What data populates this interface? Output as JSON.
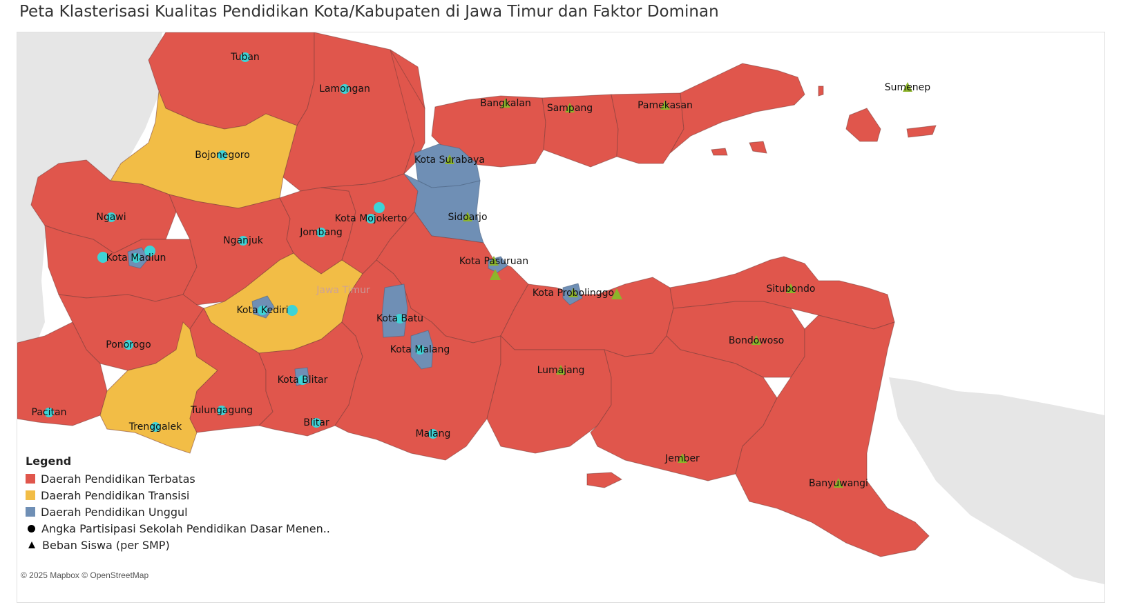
{
  "title": "Peta Klasterisasi Kualitas Pendidikan Kota/Kabupaten di Jawa Timur dan Faktor Dominan",
  "province_label": "Jawa Timur",
  "attribution": "© 2025 Mapbox © OpenStreetMap",
  "colors": {
    "terbatas": "#e0564c",
    "transisi": "#f2bd46",
    "unggul": "#6f8fb5",
    "marker_circle": "#3ed3d6",
    "marker_triangle": "#8db52a"
  },
  "legend": {
    "title": "Legend",
    "items": [
      {
        "label": "Daerah Pendidikan Terbatas",
        "kind": "swatch",
        "color": "#e0564c"
      },
      {
        "label": "Daerah Pendidikan Transisi",
        "kind": "swatch",
        "color": "#f2bd46"
      },
      {
        "label": "Daerah Pendidikan Unggul",
        "kind": "swatch",
        "color": "#6f8fb5"
      },
      {
        "label": "Angka Partisipasi Sekolah Pendidikan Dasar Menen..",
        "kind": "circle",
        "color": "#000000"
      },
      {
        "label": "Beban Siswa (per SMP)",
        "kind": "triangle",
        "color": "#000000"
      }
    ]
  },
  "cities": [
    {
      "name": "Tuban",
      "cluster": "terbatas",
      "factor": "circle"
    },
    {
      "name": "Lamongan",
      "cluster": "terbatas",
      "factor": "circle"
    },
    {
      "name": "Bojonegoro",
      "cluster": "transisi",
      "factor": "circle"
    },
    {
      "name": "Ngawi",
      "cluster": "terbatas",
      "factor": "circle"
    },
    {
      "name": "Kota Madiun",
      "cluster": "unggul",
      "factor": "circle"
    },
    {
      "name": "Nganjuk",
      "cluster": "terbatas",
      "factor": "circle"
    },
    {
      "name": "Jombang",
      "cluster": "terbatas",
      "factor": "circle"
    },
    {
      "name": "Kota Mojokerto",
      "cluster": "terbatas",
      "factor": "circle"
    },
    {
      "name": "Kota Surabaya",
      "cluster": "unggul",
      "factor": "triangle"
    },
    {
      "name": "Sidoarjo",
      "cluster": "unggul",
      "factor": "triangle"
    },
    {
      "name": "Kota Pasuruan",
      "cluster": "unggul",
      "factor": "triangle"
    },
    {
      "name": "Kota Probolinggo",
      "cluster": "unggul",
      "factor": "triangle"
    },
    {
      "name": "Kota Kediri",
      "cluster": "unggul",
      "factor": "circle"
    },
    {
      "name": "Kota Batu",
      "cluster": "unggul",
      "factor": "circle"
    },
    {
      "name": "Kota Malang",
      "cluster": "unggul",
      "factor": "circle"
    },
    {
      "name": "Ponorogo",
      "cluster": "terbatas",
      "factor": "circle"
    },
    {
      "name": "Kota Blitar",
      "cluster": "unggul",
      "factor": "circle"
    },
    {
      "name": "Pacitan",
      "cluster": "terbatas",
      "factor": "circle"
    },
    {
      "name": "Tulungagung",
      "cluster": "terbatas",
      "factor": "circle"
    },
    {
      "name": "Trenggalek",
      "cluster": "transisi",
      "factor": "circle"
    },
    {
      "name": "Blitar",
      "cluster": "terbatas",
      "factor": "circle"
    },
    {
      "name": "Malang",
      "cluster": "terbatas",
      "factor": "circle"
    },
    {
      "name": "Lumajang",
      "cluster": "terbatas",
      "factor": "triangle"
    },
    {
      "name": "Jember",
      "cluster": "terbatas",
      "factor": "triangle"
    },
    {
      "name": "Banyuwangi",
      "cluster": "terbatas",
      "factor": "triangle"
    },
    {
      "name": "Bondowoso",
      "cluster": "terbatas",
      "factor": "triangle"
    },
    {
      "name": "Situbondo",
      "cluster": "terbatas",
      "factor": "triangle"
    },
    {
      "name": "Bangkalan",
      "cluster": "terbatas",
      "factor": "triangle"
    },
    {
      "name": "Sampang",
      "cluster": "terbatas",
      "factor": "triangle"
    },
    {
      "name": "Pamekasan",
      "cluster": "terbatas",
      "factor": "triangle"
    },
    {
      "name": "Sumenep",
      "cluster": "terbatas",
      "factor": "triangle"
    }
  ]
}
